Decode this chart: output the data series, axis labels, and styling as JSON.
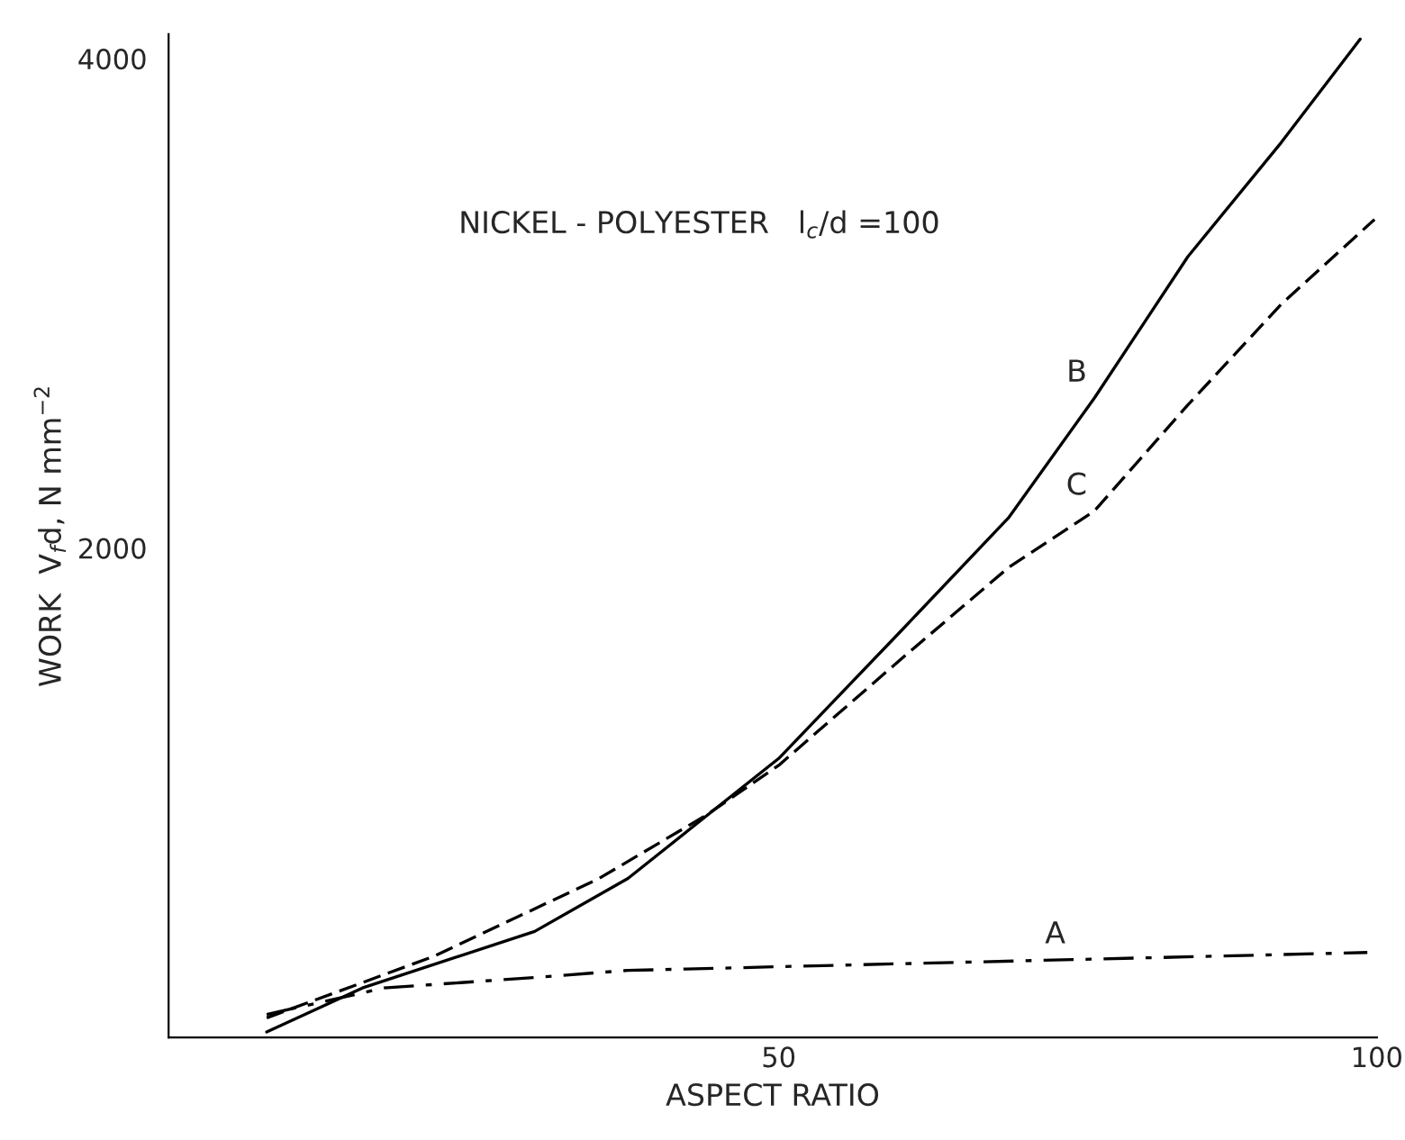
{
  "chart_data": {
    "type": "line",
    "xlabel": "ASPECT RATIO",
    "ylabel": "WORK  V$_{f}$d, N mm$^{−2}$",
    "xlim": [
      -1,
      100
    ],
    "ylim": [
      0,
      4100
    ],
    "xticks": [
      50,
      100
    ],
    "yticks": [
      2000,
      4000
    ],
    "grid": false,
    "series": [
      {
        "name": "A",
        "color": "#000000",
        "line_style": "dashdot",
        "x": [
          7.2,
          17,
          29.6,
          37.4,
          44.6,
          50,
          74.6,
          99.2
        ],
        "values": [
          94,
          202,
          245,
          274,
          282,
          289,
          318,
          347
        ]
      },
      {
        "name": "B",
        "color": "#000000",
        "line_style": "solid",
        "x": [
          7.2,
          15.2,
          29.6,
          37.4,
          50,
          60.2,
          69.2,
          76.4,
          84.2,
          92,
          98.6
        ],
        "values": [
          22,
          202,
          433,
          650,
          1140,
          1660,
          2123,
          2614,
          3191,
          3657,
          4080
        ]
      },
      {
        "name": "C",
        "color": "#000000",
        "line_style": "dashed",
        "x": [
          7.2,
          21.2,
          35,
          44,
          50,
          60.2,
          69.2,
          76.4,
          84.2,
          92,
          99.8
        ],
        "values": [
          80,
          332,
          650,
          910,
          1112,
          1545,
          1920,
          2152,
          2585,
          2996,
          3343
        ]
      }
    ],
    "annotations": [
      "NICKEL - POLYESTER   l$_{c}$/d =100"
    ]
  }
}
